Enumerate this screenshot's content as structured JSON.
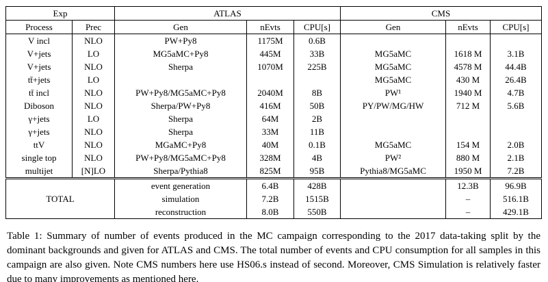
{
  "table": {
    "header": {
      "exp": "Exp",
      "atlas": "ATLAS",
      "cms": "CMS",
      "cols": [
        "Process",
        "Prec",
        "Gen",
        "nEvts",
        "CPU[s]",
        "Gen",
        "nEvts",
        "CPU[s]"
      ]
    },
    "rows": [
      [
        "V incl",
        "NLO",
        "PW+Py8",
        "1175M",
        "0.6B",
        "",
        "",
        ""
      ],
      [
        "V+jets",
        "LO",
        "MG5aMC+Py8",
        "445M",
        "33B",
        "MG5aMC",
        "1618 M",
        "3.1B"
      ],
      [
        "V+jets",
        "NLO",
        "Sherpa",
        "1070M",
        "225B",
        "MG5aMC",
        "4578 M",
        "44.4B"
      ],
      [
        "tt̄+jets",
        "LO",
        "",
        "",
        "",
        "MG5aMC",
        "430 M",
        "26.4B"
      ],
      [
        "tt̄ incl",
        "NLO",
        "PW+Py8/MG5aMC+Py8",
        "2040M",
        "8B",
        "PW¹",
        "1940 M",
        "4.7B"
      ],
      [
        "Diboson",
        "NLO",
        "Sherpa/PW+Py8",
        "416M",
        "50B",
        "PY/PW/MG/HW",
        "712 M",
        "5.6B"
      ],
      [
        "γ+jets",
        "LO",
        "Sherpa",
        "64M",
        "2B",
        "",
        "",
        ""
      ],
      [
        "γ+jets",
        "NLO",
        "Sherpa",
        "33M",
        "11B",
        "",
        "",
        ""
      ],
      [
        "ttV",
        "NLO",
        "MGaMC+Py8",
        "40M",
        "0.1B",
        "MG5aMC",
        "154 M",
        "2.0B"
      ],
      [
        "single top",
        "NLO",
        "PW+Py8/MG5aMC+Py8",
        "328M",
        "4B",
        "PW²",
        "880 M",
        "2.1B"
      ],
      [
        "multijet",
        "[N]LO",
        "Sherpa/Pythia8",
        "825M",
        "95B",
        "Pythia8/MG5aMC",
        "1950 M",
        "7.2B"
      ]
    ],
    "totals": {
      "label": "TOTAL",
      "rows": [
        [
          "event generation",
          "6.4B",
          "428B",
          "",
          "12.3B",
          "96.9B"
        ],
        [
          "simulation",
          "7.2B",
          "1515B",
          "",
          "–",
          "516.1B"
        ],
        [
          "reconstruction",
          "8.0B",
          "550B",
          "",
          "–",
          "429.1B"
        ]
      ]
    }
  },
  "caption": {
    "label": "Table 1:",
    "body": " Summary of number of events produced in the MC campaign corresponding to the 2017 data-taking split by the dominant backgrounds and given for ATLAS and CMS. The total number of events and CPU consumption for all samples in this campaign are also given. Note CMS numbers here use HS06.s instead of second. Moreover, CMS Simulation is relatively faster due to many improvements as mentioned ",
    "link": "here",
    "suffix": "."
  }
}
